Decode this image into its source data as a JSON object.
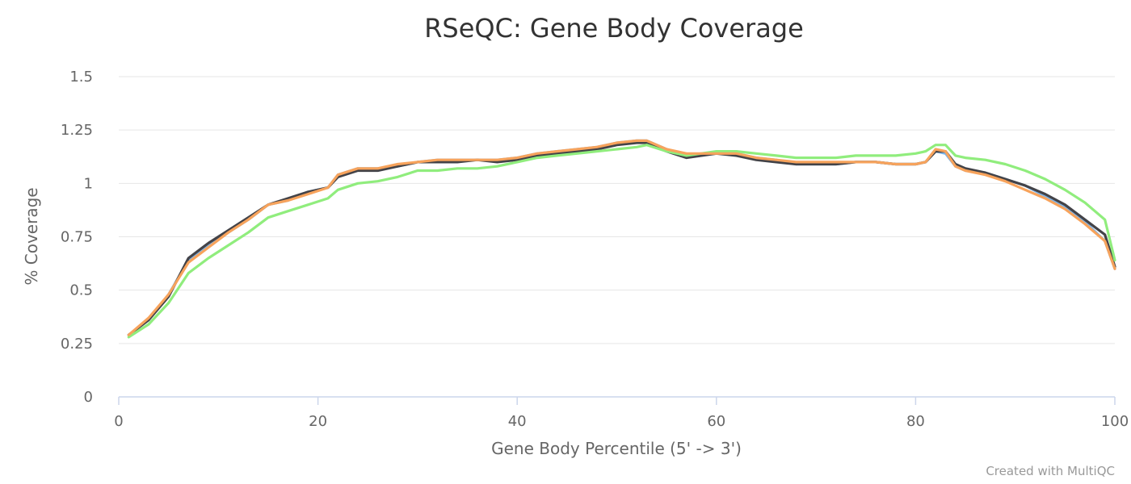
{
  "chart_data": {
    "type": "line",
    "title": "RSeQC: Gene Body Coverage",
    "xlabel": "Gene Body Percentile (5' -> 3')",
    "ylabel": "% Coverage",
    "xlim": [
      0,
      100
    ],
    "ylim": [
      0,
      1.5
    ],
    "xticks": [
      "0",
      "20",
      "40",
      "60",
      "80",
      "100"
    ],
    "yticks": [
      "0",
      "0.25",
      "0.5",
      "0.75",
      "1",
      "1.25",
      "1.5"
    ],
    "grid": true,
    "legend": "none",
    "series": [
      {
        "color": "#7cb5ec",
        "points": [
          [
            1,
            0.29
          ],
          [
            3,
            0.36
          ],
          [
            5,
            0.48
          ],
          [
            7,
            0.64
          ],
          [
            9,
            0.71
          ],
          [
            11,
            0.77
          ],
          [
            13,
            0.83
          ],
          [
            15,
            0.9
          ],
          [
            17,
            0.92
          ],
          [
            19,
            0.96
          ],
          [
            21,
            0.98
          ],
          [
            22,
            1.04
          ],
          [
            24,
            1.07
          ],
          [
            26,
            1.07
          ],
          [
            28,
            1.08
          ],
          [
            30,
            1.1
          ],
          [
            32,
            1.11
          ],
          [
            34,
            1.11
          ],
          [
            36,
            1.11
          ],
          [
            38,
            1.11
          ],
          [
            40,
            1.12
          ],
          [
            42,
            1.14
          ],
          [
            44,
            1.15
          ],
          [
            46,
            1.16
          ],
          [
            48,
            1.17
          ],
          [
            50,
            1.19
          ],
          [
            52,
            1.2
          ],
          [
            53,
            1.2
          ],
          [
            55,
            1.16
          ],
          [
            57,
            1.13
          ],
          [
            60,
            1.14
          ],
          [
            62,
            1.14
          ],
          [
            64,
            1.12
          ],
          [
            66,
            1.11
          ],
          [
            68,
            1.09
          ],
          [
            70,
            1.09
          ],
          [
            72,
            1.09
          ],
          [
            74,
            1.1
          ],
          [
            76,
            1.1
          ],
          [
            78,
            1.09
          ],
          [
            80,
            1.09
          ],
          [
            81,
            1.1
          ],
          [
            82,
            1.15
          ],
          [
            83,
            1.14
          ],
          [
            84,
            1.08
          ],
          [
            85,
            1.06
          ],
          [
            87,
            1.05
          ],
          [
            89,
            1.02
          ],
          [
            91,
            0.99
          ],
          [
            93,
            0.94
          ],
          [
            95,
            0.89
          ],
          [
            97,
            0.82
          ],
          [
            99,
            0.73
          ],
          [
            101,
            0.6
          ]
        ]
      },
      {
        "color": "#434348",
        "points": [
          [
            1,
            0.29
          ],
          [
            3,
            0.36
          ],
          [
            5,
            0.47
          ],
          [
            7,
            0.65
          ],
          [
            9,
            0.72
          ],
          [
            11,
            0.78
          ],
          [
            13,
            0.84
          ],
          [
            15,
            0.9
          ],
          [
            17,
            0.93
          ],
          [
            19,
            0.96
          ],
          [
            21,
            0.98
          ],
          [
            22,
            1.03
          ],
          [
            24,
            1.06
          ],
          [
            26,
            1.06
          ],
          [
            28,
            1.08
          ],
          [
            30,
            1.1
          ],
          [
            32,
            1.1
          ],
          [
            34,
            1.1
          ],
          [
            36,
            1.11
          ],
          [
            38,
            1.1
          ],
          [
            40,
            1.11
          ],
          [
            42,
            1.13
          ],
          [
            44,
            1.14
          ],
          [
            46,
            1.15
          ],
          [
            48,
            1.16
          ],
          [
            50,
            1.18
          ],
          [
            52,
            1.19
          ],
          [
            53,
            1.19
          ],
          [
            55,
            1.15
          ],
          [
            57,
            1.12
          ],
          [
            60,
            1.14
          ],
          [
            62,
            1.13
          ],
          [
            64,
            1.11
          ],
          [
            66,
            1.1
          ],
          [
            68,
            1.09
          ],
          [
            70,
            1.09
          ],
          [
            72,
            1.09
          ],
          [
            74,
            1.1
          ],
          [
            76,
            1.1
          ],
          [
            78,
            1.09
          ],
          [
            80,
            1.09
          ],
          [
            81,
            1.1
          ],
          [
            82,
            1.15
          ],
          [
            83,
            1.15
          ],
          [
            84,
            1.09
          ],
          [
            85,
            1.07
          ],
          [
            87,
            1.05
          ],
          [
            89,
            1.02
          ],
          [
            91,
            0.99
          ],
          [
            93,
            0.95
          ],
          [
            95,
            0.9
          ],
          [
            97,
            0.83
          ],
          [
            99,
            0.76
          ],
          [
            101,
            0.61
          ]
        ]
      },
      {
        "color": "#90ed7d",
        "points": [
          [
            1,
            0.28
          ],
          [
            3,
            0.34
          ],
          [
            5,
            0.44
          ],
          [
            7,
            0.58
          ],
          [
            9,
            0.65
          ],
          [
            11,
            0.71
          ],
          [
            13,
            0.77
          ],
          [
            15,
            0.84
          ],
          [
            17,
            0.87
          ],
          [
            19,
            0.9
          ],
          [
            21,
            0.93
          ],
          [
            22,
            0.97
          ],
          [
            24,
            1.0
          ],
          [
            26,
            1.01
          ],
          [
            28,
            1.03
          ],
          [
            30,
            1.06
          ],
          [
            32,
            1.06
          ],
          [
            34,
            1.07
          ],
          [
            36,
            1.07
          ],
          [
            38,
            1.08
          ],
          [
            40,
            1.1
          ],
          [
            42,
            1.12
          ],
          [
            44,
            1.13
          ],
          [
            46,
            1.14
          ],
          [
            48,
            1.15
          ],
          [
            50,
            1.16
          ],
          [
            52,
            1.17
          ],
          [
            53,
            1.18
          ],
          [
            55,
            1.15
          ],
          [
            57,
            1.13
          ],
          [
            60,
            1.15
          ],
          [
            62,
            1.15
          ],
          [
            64,
            1.14
          ],
          [
            66,
            1.13
          ],
          [
            68,
            1.12
          ],
          [
            70,
            1.12
          ],
          [
            72,
            1.12
          ],
          [
            74,
            1.13
          ],
          [
            76,
            1.13
          ],
          [
            78,
            1.13
          ],
          [
            80,
            1.14
          ],
          [
            81,
            1.15
          ],
          [
            82,
            1.18
          ],
          [
            83,
            1.18
          ],
          [
            84,
            1.13
          ],
          [
            85,
            1.12
          ],
          [
            87,
            1.11
          ],
          [
            89,
            1.09
          ],
          [
            91,
            1.06
          ],
          [
            93,
            1.02
          ],
          [
            95,
            0.97
          ],
          [
            97,
            0.91
          ],
          [
            99,
            0.83
          ],
          [
            101,
            0.64
          ]
        ]
      },
      {
        "color": "#f7a35c",
        "points": [
          [
            1,
            0.29
          ],
          [
            3,
            0.37
          ],
          [
            5,
            0.48
          ],
          [
            7,
            0.63
          ],
          [
            9,
            0.7
          ],
          [
            11,
            0.77
          ],
          [
            13,
            0.83
          ],
          [
            15,
            0.9
          ],
          [
            17,
            0.92
          ],
          [
            19,
            0.95
          ],
          [
            21,
            0.98
          ],
          [
            22,
            1.04
          ],
          [
            24,
            1.07
          ],
          [
            26,
            1.07
          ],
          [
            28,
            1.09
          ],
          [
            30,
            1.1
          ],
          [
            32,
            1.11
          ],
          [
            34,
            1.11
          ],
          [
            36,
            1.11
          ],
          [
            38,
            1.11
          ],
          [
            40,
            1.12
          ],
          [
            42,
            1.14
          ],
          [
            44,
            1.15
          ],
          [
            46,
            1.16
          ],
          [
            48,
            1.17
          ],
          [
            50,
            1.19
          ],
          [
            52,
            1.2
          ],
          [
            53,
            1.2
          ],
          [
            55,
            1.16
          ],
          [
            57,
            1.14
          ],
          [
            60,
            1.14
          ],
          [
            62,
            1.14
          ],
          [
            64,
            1.12
          ],
          [
            66,
            1.11
          ],
          [
            68,
            1.1
          ],
          [
            70,
            1.1
          ],
          [
            72,
            1.1
          ],
          [
            74,
            1.1
          ],
          [
            76,
            1.1
          ],
          [
            78,
            1.09
          ],
          [
            80,
            1.09
          ],
          [
            81,
            1.1
          ],
          [
            82,
            1.16
          ],
          [
            83,
            1.15
          ],
          [
            84,
            1.08
          ],
          [
            85,
            1.06
          ],
          [
            87,
            1.04
          ],
          [
            89,
            1.01
          ],
          [
            91,
            0.97
          ],
          [
            93,
            0.93
          ],
          [
            95,
            0.88
          ],
          [
            97,
            0.81
          ],
          [
            99,
            0.73
          ],
          [
            101,
            0.6
          ]
        ]
      }
    ]
  },
  "credit": "Created with MultiQC"
}
